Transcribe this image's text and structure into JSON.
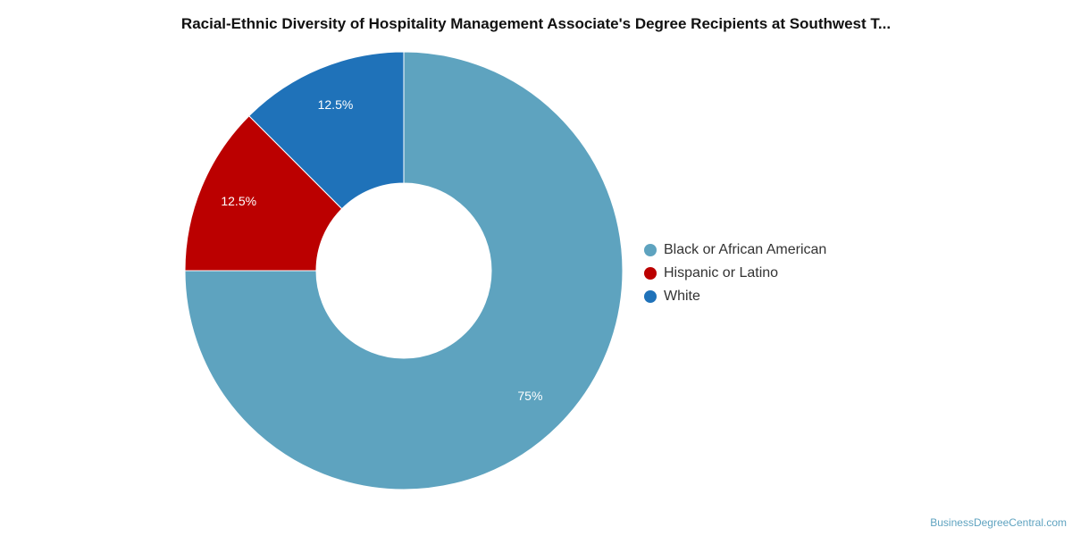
{
  "chart_data": {
    "type": "pie",
    "title": "Racial-Ethnic Diversity of Hospitality Management Associate's Degree Recipients at Southwest T...",
    "categories": [
      "Black or African American",
      "Hispanic or Latino",
      "White"
    ],
    "values": [
      75,
      12.5,
      12.5
    ],
    "labels": [
      "75%",
      "12.5%",
      "12.5%"
    ],
    "colors": [
      "#5ea3bf",
      "#bb0000",
      "#1f72b9"
    ],
    "legend_position": "right",
    "donut": true
  },
  "footer": {
    "credit": "BusinessDegreeCentral.com"
  }
}
